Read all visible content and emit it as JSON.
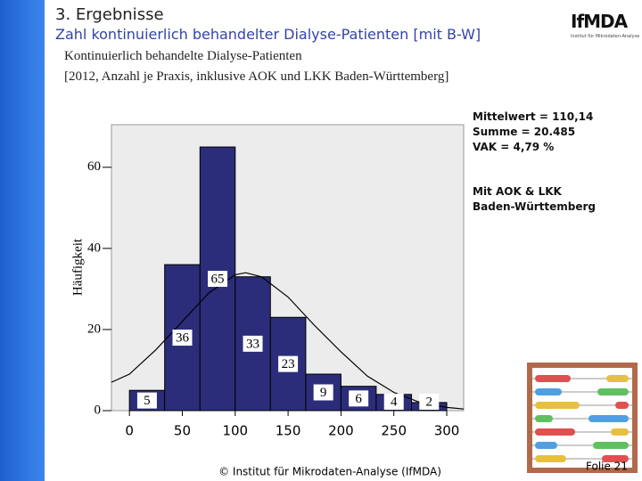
{
  "header": {
    "title": "3. Ergebnisse",
    "subtitle": "Zahl kontinuierlich behandelter Dialyse-Patienten [mit B-W]",
    "logo": "IfMDA",
    "logo_caption": "Institut für Mikrodaten-Analyse"
  },
  "chart_data": {
    "type": "histogram",
    "title": "Kontinuierlich behandelte Dialyse-Patienten",
    "subtitle": "[2012, Anzahl je Praxis, inklusive AOK und LKK Baden-Württemberg]",
    "y_label": "Häufigkeit",
    "bins": [
      0,
      33.3,
      66.7,
      100,
      133.3,
      166.7,
      200,
      233.3,
      266.7,
      300
    ],
    "values": [
      5,
      36,
      65,
      33,
      23,
      9,
      6,
      4,
      2
    ],
    "color": "#2b2d7a",
    "curve": {
      "x": [
        -17,
        0,
        25,
        50,
        75,
        100,
        110,
        125,
        150,
        175,
        200,
        225,
        250,
        275,
        300,
        316
      ],
      "values": [
        7,
        9,
        15,
        22,
        29,
        33.5,
        34,
        33,
        28,
        21,
        14.5,
        8.5,
        4.5,
        2,
        0.8,
        0.4
      ],
      "color": "#000000"
    },
    "xlim": [
      -17,
      316
    ],
    "xticks": [
      0,
      50,
      100,
      150,
      200,
      250,
      300
    ],
    "ylim": [
      0,
      70.5
    ],
    "yticks": [
      0,
      20,
      40,
      60
    ],
    "grid": false
  },
  "notes": [
    "Mittelwert = 110,14",
    "Summe = 20.485",
    "VAK = 4,79 %",
    "Mit AOK & LKK",
    "Baden-Württemberg"
  ],
  "footer": {
    "copyright": "© Institut für Mikrodaten-Analyse (IfMDA)",
    "slide": "Folie 21"
  }
}
